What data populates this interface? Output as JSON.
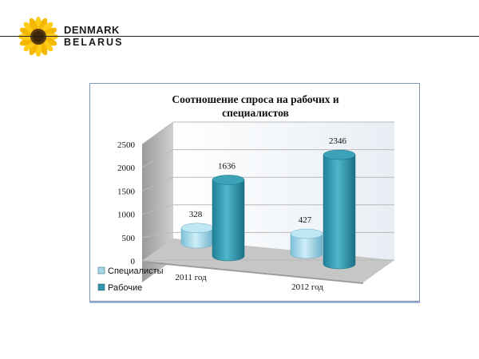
{
  "header": {
    "logo_line1": "DENMARK",
    "logo_line2": "BELARUS"
  },
  "colors": {
    "specialists": "#a9d8ea",
    "workers": "#2e95aa",
    "header_line": "#222222"
  },
  "chart_data": {
    "type": "bar",
    "title_line1": "Соотношение спроса на рабочих и",
    "title_line2": "специалистов",
    "categories": [
      "2011 год",
      "2012 год"
    ],
    "series": [
      {
        "name": "Специалисты",
        "values": [
          328,
          427
        ]
      },
      {
        "name": "Рабочие",
        "values": [
          1636,
          2346
        ]
      }
    ],
    "ylim": [
      0,
      2500
    ],
    "yticks": [
      "0",
      "500",
      "1000",
      "1500",
      "2000",
      "2500"
    ],
    "grid": true,
    "legend": "bottom-left",
    "style": "3d-cylinder"
  }
}
